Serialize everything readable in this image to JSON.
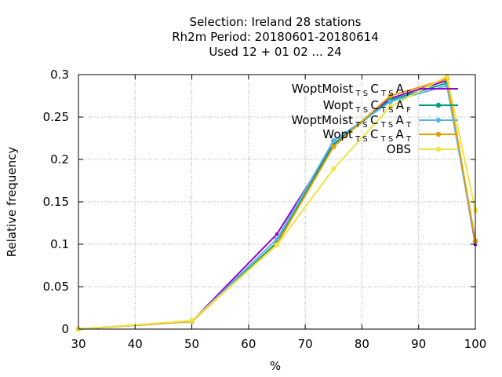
{
  "chart_data": {
    "type": "line",
    "title_lines": [
      "Selection: Ireland      28 stations",
      "Rh2m  Period: 20180601-20180614",
      "Used  12 + 01 02 ... 24"
    ],
    "xlabel": "%",
    "ylabel": "Relative frequency",
    "xlim": [
      30,
      100
    ],
    "ylim": [
      0,
      0.3
    ],
    "xticks": [
      30,
      40,
      50,
      60,
      70,
      80,
      90,
      100
    ],
    "yticks": [
      0,
      0.05,
      0.1,
      0.15,
      0.2,
      0.25,
      0.3
    ],
    "x_tick_labels": [
      "30",
      "40",
      "50",
      "60",
      "70",
      "80",
      "90",
      "100"
    ],
    "y_tick_labels": [
      "0",
      "0.05",
      "0.1",
      "0.15",
      "0.2",
      "0.25",
      "0.3"
    ],
    "grid": true,
    "legend_position": "top-right",
    "series": [
      {
        "legend": {
          "base": "WoptMoist",
          "sub1": "T S",
          "mid": "C",
          "sub2": "T S",
          "end": "A",
          "sub3": "F"
        },
        "color": "#9400d3",
        "marker": "none",
        "x": [
          30,
          50,
          65,
          75,
          85,
          95,
          100
        ],
        "y": [
          0.0,
          0.009,
          0.112,
          0.218,
          0.272,
          0.293,
          0.1
        ]
      },
      {
        "legend": {
          "base": "Wopt",
          "sub1": "T S",
          "mid": "C",
          "sub2": "T S",
          "end": "A",
          "sub3": "F"
        },
        "color": "#009e73",
        "marker": "circle",
        "x": [
          30,
          50,
          65,
          75,
          85,
          95,
          100
        ],
        "y": [
          0.0,
          0.009,
          0.102,
          0.218,
          0.27,
          0.29,
          0.103
        ]
      },
      {
        "legend": {
          "base": "WoptMoist",
          "sub1": "T S",
          "mid": "C",
          "sub2": "T S",
          "end": "A",
          "sub3": "T"
        },
        "color": "#56b4e9",
        "marker": "circle",
        "x": [
          30,
          50,
          65,
          75,
          85,
          95,
          100
        ],
        "y": [
          0.0,
          0.009,
          0.106,
          0.222,
          0.268,
          0.287,
          0.103
        ]
      },
      {
        "legend": {
          "base": "Wopt",
          "sub1": "T S",
          "mid": "C",
          "sub2": "T S",
          "end": "A",
          "sub3": "T"
        },
        "color": "#e69f00",
        "marker": "circle",
        "x": [
          30,
          50,
          65,
          75,
          85,
          95,
          100
        ],
        "y": [
          0.0,
          0.009,
          0.1,
          0.215,
          0.275,
          0.295,
          0.104
        ]
      },
      {
        "legend": {
          "base": "OBS",
          "sub1": "",
          "mid": "",
          "sub2": "",
          "end": "",
          "sub3": ""
        },
        "color": "#f0e442",
        "marker": "circle",
        "x": [
          30,
          50,
          65,
          75,
          85,
          95,
          100
        ],
        "y": [
          0.0,
          0.01,
          0.099,
          0.189,
          0.262,
          0.298,
          0.14
        ]
      }
    ]
  }
}
